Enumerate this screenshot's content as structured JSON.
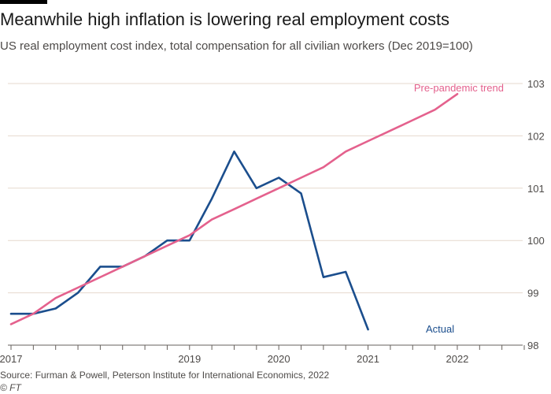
{
  "header": {
    "title": "Meanwhile high inflation is lowering real employment costs",
    "subtitle": "US real employment cost index, total compensation for all civilian workers (Dec 2019=100)"
  },
  "footer": {
    "source": "Source: Furman & Powell, Peterson Institute for International Economics, 2022",
    "credit": "© FT"
  },
  "colors": {
    "actual": "#1b4e8d",
    "trend": "#e4618d",
    "grid": "#e6d9ce",
    "axis_text": "#4d4a48"
  },
  "chart_data": {
    "type": "line",
    "title": "Meanwhile high inflation is lowering real employment costs",
    "subtitle": "US real employment cost index, total compensation for all civilian workers (Dec 2019=100)",
    "xlabel": "",
    "ylabel": "",
    "ylim": [
      98,
      103
    ],
    "yticks": [
      98,
      99,
      100,
      101,
      102,
      103
    ],
    "ytick_labels": [
      "98",
      "99",
      "100",
      "101",
      "102",
      "103"
    ],
    "y_axis_side": "right",
    "xlim": [
      "2017-Q1",
      "2022-Q4"
    ],
    "xtick_labels": [
      "2017",
      "2019",
      "2020",
      "2021",
      "2022"
    ],
    "xtick_label_positions": [
      "2017-Q1",
      "2019-Q1",
      "2020-Q1",
      "2021-Q1",
      "2022-Q1"
    ],
    "x_minor_ticks": "quarterly",
    "grid": true,
    "series": [
      {
        "name": "Actual",
        "color": "#1b4e8d",
        "x": [
          "2017-Q1",
          "2017-Q2",
          "2017-Q3",
          "2017-Q4",
          "2018-Q1",
          "2018-Q2",
          "2018-Q3",
          "2018-Q4",
          "2019-Q1",
          "2019-Q2",
          "2019-Q3",
          "2019-Q4",
          "2020-Q1",
          "2020-Q2",
          "2020-Q3",
          "2020-Q4",
          "2021-Q1",
          "2021-Q2",
          "2021-Q3",
          "2021-Q4"
        ],
        "values": [
          98.6,
          98.6,
          98.7,
          99.0,
          99.5,
          99.5,
          99.7,
          100.0,
          100.0,
          100.8,
          101.7,
          101.0,
          101.2,
          100.9,
          99.3,
          99.4,
          98.3,
          null,
          null,
          null
        ]
      },
      {
        "name": "Pre-pandemic trend",
        "color": "#e4618d",
        "x": [
          "2017-Q1",
          "2017-Q2",
          "2017-Q3",
          "2017-Q4",
          "2018-Q1",
          "2018-Q2",
          "2018-Q3",
          "2018-Q4",
          "2019-Q1",
          "2019-Q2",
          "2019-Q3",
          "2019-Q4",
          "2020-Q1",
          "2020-Q2",
          "2020-Q3",
          "2020-Q4",
          "2021-Q1",
          "2021-Q2",
          "2021-Q3",
          "2021-Q4",
          "2022-Q1",
          "2022-Q2",
          "2022-Q3"
        ],
        "values": [
          98.4,
          98.6,
          98.9,
          99.1,
          99.3,
          99.5,
          99.7,
          99.9,
          100.1,
          100.4,
          100.6,
          100.8,
          101.0,
          101.2,
          101.4,
          101.7,
          101.9,
          102.1,
          102.3,
          102.5,
          102.8,
          null,
          null
        ]
      }
    ],
    "annotations": [
      {
        "text": "Pre-pandemic trend",
        "series": "Pre-pandemic trend"
      },
      {
        "text": "Actual",
        "series": "Actual"
      }
    ]
  }
}
